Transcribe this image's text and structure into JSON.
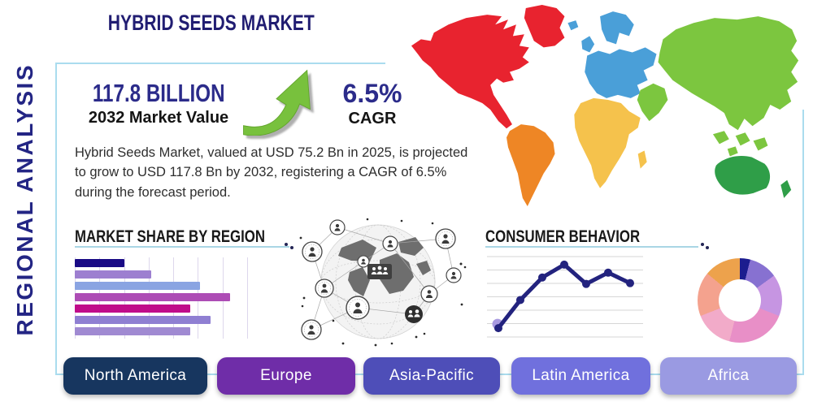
{
  "header": {
    "title": "HYBRID SEEDS MARKET",
    "side_label": "REGIONAL ANALYSIS"
  },
  "stats": {
    "value": "117.8 BILLION",
    "value_caption": "2032 Market Value",
    "cagr": "6.5%",
    "cagr_caption": "CAGR",
    "growth_arrow_color": "#78c13d"
  },
  "description": "Hybrid Seeds Market, valued at USD 75.2 Bn in 2025, is projected to grow to USD 117.8 Bn by 2032, registering a CAGR of 6.5% during the forecast period.",
  "accent": {
    "underline_color": "#a9d6e5",
    "panel_border_color": "#aadcee",
    "title_color": "#211d72"
  },
  "chart_data": [
    {
      "type": "bar",
      "title": "MARKET SHARE BY REGION",
      "orientation": "horizontal",
      "values": [
        20,
        31,
        51,
        63,
        47,
        55,
        47
      ],
      "xlim": [
        0,
        70
      ],
      "grid_step": 10,
      "grid": true,
      "colors": [
        "#190a85",
        "#9d7fd0",
        "#8aa4e2",
        "#ad4cb5",
        "#c00c8a",
        "#8f7fd2",
        "#a08ad2"
      ]
    },
    {
      "type": "line",
      "title": "CONSUMER BEHAVIOR",
      "values": [
        11,
        46,
        74,
        90,
        66,
        80,
        67
      ],
      "ylim": [
        0,
        100
      ],
      "grid": "horizontal",
      "line_color": "#23237e",
      "marker_color": "#23237e",
      "first_marker_halo_color": "#a99ae0"
    },
    {
      "type": "donut",
      "values": [
        4,
        11,
        16,
        23,
        15,
        17,
        14
      ],
      "colors": [
        "#1c1c8f",
        "#8771d1",
        "#c695e2",
        "#e88fc7",
        "#f2abc9",
        "#f4a28e",
        "#eda24c"
      ]
    }
  ],
  "map": {
    "regions": [
      {
        "name": "North America",
        "color": "#e8232f"
      },
      {
        "name": "South America",
        "color": "#ee8625"
      },
      {
        "name": "Europe",
        "color": "#4a9fd8"
      },
      {
        "name": "Africa",
        "color": "#f5c24c"
      },
      {
        "name": "Asia",
        "color": "#7cc63f"
      },
      {
        "name": "Australia",
        "color": "#2f9e48"
      }
    ]
  },
  "region_buttons": [
    {
      "label": "North America",
      "color": "#17365f"
    },
    {
      "label": "Europe",
      "color": "#6f2da8"
    },
    {
      "label": "Asia-Pacific",
      "color": "#4e4eb8"
    },
    {
      "label": "Latin America",
      "color": "#7070dd"
    },
    {
      "label": "Africa",
      "color": "#9a9ae2"
    }
  ]
}
